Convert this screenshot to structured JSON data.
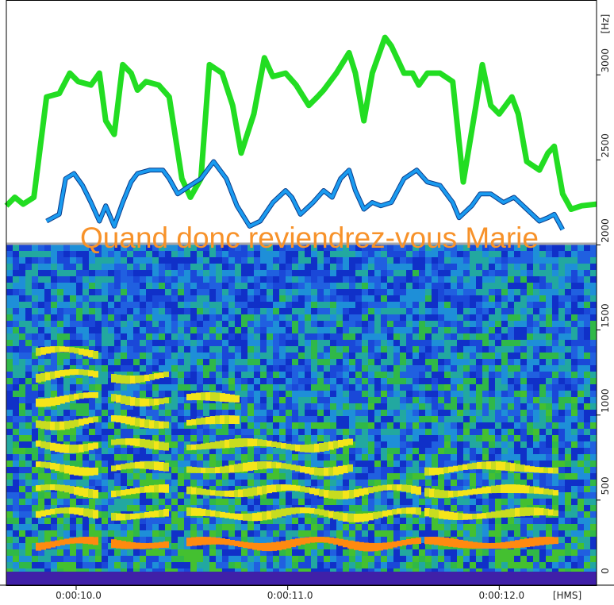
{
  "chart_data": {
    "type": "line",
    "annotation": "Quand donc reviendrez-vous Marie",
    "y_unit": "[Hz]",
    "x_unit": "[HMS]",
    "xlim": [
      9.67,
      12.46
    ],
    "ylim": [
      0,
      3440
    ],
    "xticks": [
      {
        "value": 10,
        "label": "0:00:10.0"
      },
      {
        "value": 11,
        "label": "0:00:11.0"
      },
      {
        "value": 12,
        "label": "0:00:12.0"
      }
    ],
    "yticks": [
      0,
      500,
      1000,
      1500,
      2000,
      2500,
      3000
    ],
    "series": [
      {
        "color": "#22dd22",
        "x": [
          9.67,
          9.71,
          9.75,
          9.8,
          9.86,
          9.92,
          9.97,
          10.01,
          10.07,
          10.11,
          10.14,
          10.18,
          10.22,
          10.26,
          10.29,
          10.33,
          10.39,
          10.44,
          10.5,
          10.54,
          10.59,
          10.63,
          10.69,
          10.74,
          10.78,
          10.84,
          10.89,
          10.93,
          10.99,
          11.04,
          11.1,
          11.14,
          11.17,
          11.23,
          11.29,
          11.32,
          11.36,
          11.4,
          11.46,
          11.49,
          11.55,
          11.59,
          11.62,
          11.66,
          11.72,
          11.78,
          11.83,
          11.89,
          11.92,
          11.96,
          12.0,
          12.06,
          12.09,
          12.13,
          12.19,
          12.23,
          12.26,
          12.3,
          12.34,
          12.39,
          12.46
        ],
        "values": [
          2230,
          2280,
          2240,
          2280,
          2870,
          2890,
          3010,
          2960,
          2940,
          3010,
          2730,
          2650,
          3060,
          3010,
          2910,
          2960,
          2940,
          2870,
          2390,
          2280,
          2390,
          3060,
          3010,
          2820,
          2540,
          2770,
          3100,
          2990,
          3010,
          2940,
          2820,
          2870,
          2910,
          3010,
          3130,
          3010,
          2730,
          3010,
          3220,
          3170,
          3010,
          3010,
          2940,
          3010,
          3010,
          2960,
          2370,
          2820,
          3060,
          2820,
          2770,
          2870,
          2770,
          2490,
          2440,
          2540,
          2580,
          2300,
          2210,
          2230,
          2240
        ]
      },
      {
        "color": "#1a9bf0",
        "x": [
          9.86,
          9.92,
          9.95,
          9.99,
          10.03,
          10.07,
          10.11,
          10.14,
          10.18,
          10.22,
          10.26,
          10.29,
          10.35,
          10.41,
          10.44,
          10.48,
          10.54,
          10.59,
          10.65,
          10.71,
          10.76,
          10.82,
          10.87,
          10.93,
          10.99,
          11.02,
          11.06,
          11.12,
          11.17,
          11.21,
          11.25,
          11.29,
          11.32,
          11.36,
          11.4,
          11.44,
          11.49,
          11.55,
          11.61,
          11.66,
          11.72,
          11.78,
          11.81,
          11.87,
          11.91,
          11.96,
          12.02,
          12.07,
          12.13,
          12.19,
          12.23,
          12.26,
          12.3
        ],
        "values": [
          2140,
          2180,
          2390,
          2420,
          2350,
          2250,
          2140,
          2230,
          2110,
          2250,
          2370,
          2420,
          2440,
          2440,
          2390,
          2300,
          2350,
          2390,
          2490,
          2390,
          2230,
          2110,
          2140,
          2250,
          2320,
          2280,
          2180,
          2250,
          2320,
          2280,
          2390,
          2440,
          2320,
          2210,
          2250,
          2230,
          2250,
          2390,
          2440,
          2370,
          2350,
          2250,
          2160,
          2230,
          2300,
          2300,
          2250,
          2280,
          2210,
          2140,
          2160,
          2180,
          2090
        ]
      }
    ]
  }
}
